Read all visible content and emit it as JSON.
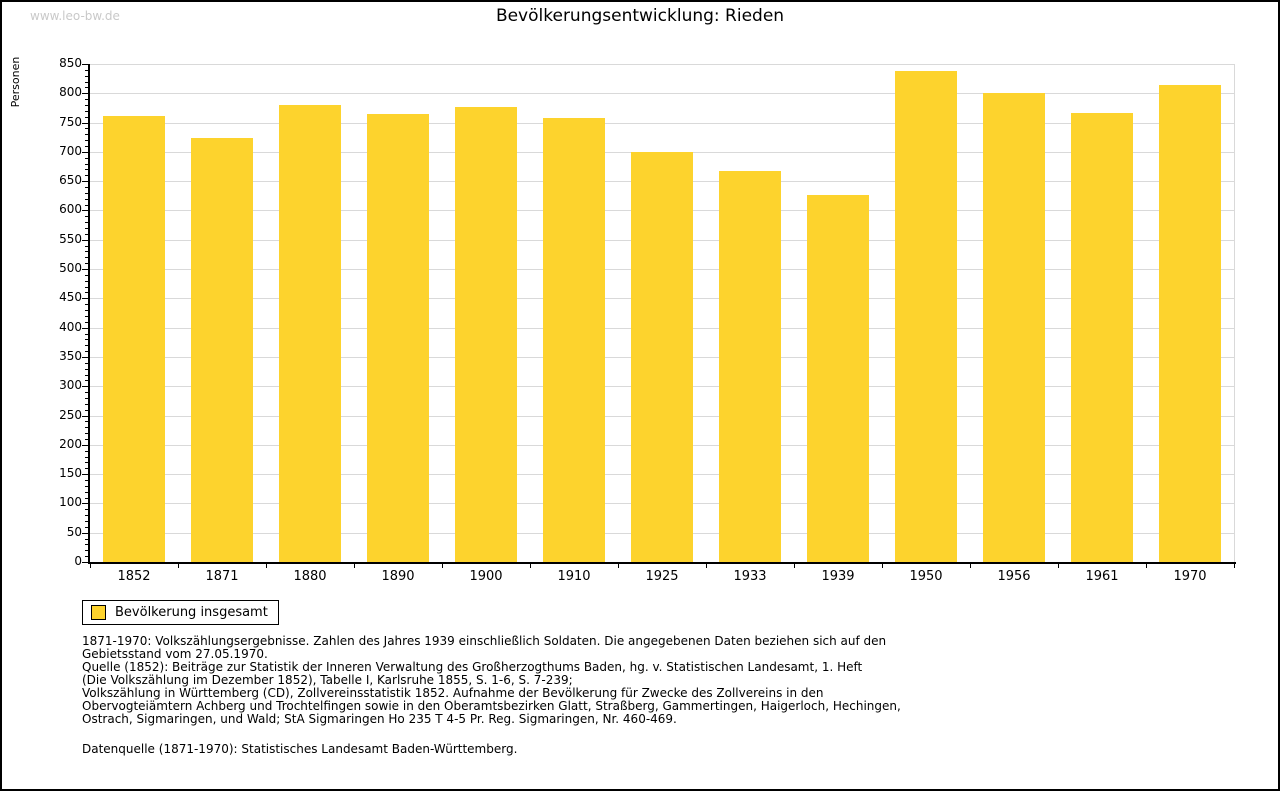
{
  "page": {
    "watermark": "www.leo-bw.de",
    "title": "Bevölkerungsentwicklung: Rieden"
  },
  "chart_data": {
    "type": "bar",
    "title": "Bevölkerungsentwicklung: Rieden",
    "xlabel": "",
    "ylabel": "Personen",
    "categories": [
      "1852",
      "1871",
      "1880",
      "1890",
      "1900",
      "1910",
      "1925",
      "1933",
      "1939",
      "1950",
      "1956",
      "1961",
      "1970"
    ],
    "values": [
      762,
      723,
      780,
      765,
      777,
      758,
      699,
      668,
      627,
      838,
      801,
      766,
      815
    ],
    "series_name": "Bevölkerung insgesamt",
    "ylim": [
      0,
      850
    ],
    "y_major_step": 50,
    "y_minor_step": 10,
    "grid": true,
    "legend_position": "bottom-left",
    "bar_color": "#fdd32d",
    "grid_color": "#d9d9d9",
    "axis_color": "#000000"
  },
  "legend": {
    "label": "Bevölkerung insgesamt",
    "swatch_color": "#fdd32d"
  },
  "footnotes": {
    "lines": [
      "1871-1970: Volkszählungsergebnisse. Zahlen des Jahres 1939 einschließlich Soldaten. Die angegebenen Daten beziehen sich auf den",
      "Gebietsstand vom 27.05.1970.",
      "Quelle (1852): Beiträge zur Statistik der Inneren Verwaltung des Großherzogthums Baden, hg. v. Statistischen Landesamt, 1. Heft",
      "(Die Volkszählung im Dezember 1852), Tabelle I, Karlsruhe 1855, S. 1-6, S. 7-239;",
      "Volkszählung in Württemberg (CD), Zollvereinsstatistik 1852. Aufnahme der Bevölkerung für Zwecke des Zollvereins in den",
      "Obervogteiämtern Achberg und Trochtelfingen sowie in den Oberamtsbezirken Glatt, Straßberg, Gammertingen, Haigerloch, Hechingen,",
      "Ostrach, Sigmaringen, und Wald; StA Sigmaringen Ho 235 T 4-5 Pr. Reg. Sigmaringen, Nr. 460-469."
    ],
    "datasource": "Datenquelle (1871-1970): Statistisches Landesamt Baden-Württemberg."
  }
}
